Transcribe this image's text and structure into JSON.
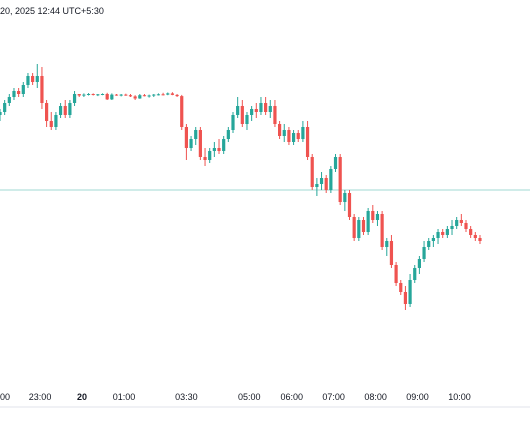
{
  "header": {
    "text": "20, 2025 12:44 UTC+5:30"
  },
  "colors": {
    "up": "#26a69a",
    "down": "#ef5350",
    "baseline": "#80cbc4",
    "axis_line": "#e0e3eb",
    "text": "#131722"
  },
  "chart_data": {
    "type": "candlestick",
    "title": "",
    "xlabel": "",
    "ylabel": "",
    "x_tick_labels": [
      {
        "label": "00",
        "bold": false
      },
      {
        "label": "23:00",
        "bold": false
      },
      {
        "label": "20",
        "bold": true
      },
      {
        "label": "01:00",
        "bold": false
      },
      {
        "label": "03:30",
        "bold": false
      },
      {
        "label": "05:00",
        "bold": false
      },
      {
        "label": "06:00",
        "bold": false
      },
      {
        "label": "07:00",
        "bold": false
      },
      {
        "label": "08:00",
        "bold": false
      },
      {
        "label": "09:00",
        "bold": false
      },
      {
        "label": "10:00",
        "bold": false
      }
    ],
    "x_tick_index": [
      0,
      8.6,
      17.6,
      26.6,
      40,
      53.5,
      62.6,
      71.6,
      80.6,
      89.6,
      98.6
    ],
    "ylim": [
      0,
      100
    ],
    "baseline_value": 50,
    "candles": [
      [
        75,
        77,
        73,
        76
      ],
      [
        76,
        80,
        75,
        79
      ],
      [
        79,
        82,
        78,
        81
      ],
      [
        81,
        84,
        80,
        83
      ],
      [
        83,
        84,
        81,
        82
      ],
      [
        82,
        86,
        81,
        85
      ],
      [
        85,
        89,
        84,
        88
      ],
      [
        88,
        89,
        85,
        86
      ],
      [
        86,
        92,
        84,
        88
      ],
      [
        88,
        91,
        77,
        79
      ],
      [
        79,
        80,
        71,
        73
      ],
      [
        73,
        76,
        70,
        71
      ],
      [
        71,
        76,
        70,
        75
      ],
      [
        75,
        79,
        74,
        78
      ],
      [
        78,
        80,
        74,
        75
      ],
      [
        75,
        80,
        74,
        79
      ],
      [
        79,
        83,
        78,
        82
      ],
      [
        82,
        82,
        81,
        81.5
      ],
      [
        81.5,
        82.2,
        81,
        81.8
      ],
      [
        81.8,
        82.3,
        81.5,
        82
      ],
      [
        82,
        82.2,
        81.5,
        81.7
      ],
      [
        81.7,
        82,
        81.3,
        81.9
      ],
      [
        81.9,
        82.2,
        81.6,
        82
      ],
      [
        82,
        82.4,
        80,
        80.2
      ],
      [
        80.2,
        82.2,
        80,
        81.8
      ],
      [
        81.8,
        82,
        81.4,
        81.6
      ],
      [
        81.6,
        82,
        81.2,
        81.8
      ],
      [
        81.8,
        82.1,
        81.4,
        81.6
      ],
      [
        81.6,
        82,
        81,
        81.2
      ],
      [
        81.2,
        81.6,
        80,
        80.5
      ],
      [
        80.5,
        82,
        80.4,
        81.6
      ],
      [
        81.6,
        82,
        81.2,
        81.4
      ],
      [
        81.4,
        81.8,
        80.8,
        81.5
      ],
      [
        81.5,
        82,
        81,
        81.8
      ],
      [
        81.8,
        82.2,
        81.5,
        81.9
      ],
      [
        81.9,
        82.4,
        81.5,
        81.8
      ],
      [
        81.8,
        82.5,
        81.6,
        82.2
      ],
      [
        82.2,
        82.6,
        81.6,
        81.7
      ],
      [
        81.7,
        82,
        81,
        81.3
      ],
      [
        81.3,
        81.7,
        70,
        71
      ],
      [
        71,
        72,
        60,
        64
      ],
      [
        64,
        68,
        63,
        67
      ],
      [
        67,
        71,
        65,
        70
      ],
      [
        70,
        71,
        60,
        61
      ],
      [
        61,
        64,
        58,
        60
      ],
      [
        60,
        64,
        59,
        63
      ],
      [
        63,
        66,
        61,
        64
      ],
      [
        64,
        67,
        62,
        63
      ],
      [
        63,
        68,
        62,
        67
      ],
      [
        67,
        71,
        66,
        70
      ],
      [
        70,
        76,
        69,
        75
      ],
      [
        75,
        81,
        74,
        78
      ],
      [
        78,
        80,
        71,
        72
      ],
      [
        72,
        76,
        70,
        75
      ],
      [
        75,
        78,
        73,
        77
      ],
      [
        77,
        79,
        74,
        76
      ],
      [
        76,
        81,
        75,
        79
      ],
      [
        79,
        81,
        75,
        76
      ],
      [
        76,
        80,
        74,
        78
      ],
      [
        78,
        80,
        71,
        72
      ],
      [
        72,
        73,
        67,
        68
      ],
      [
        68,
        72,
        66,
        70
      ],
      [
        70,
        71,
        65,
        66
      ],
      [
        66,
        70,
        65,
        69
      ],
      [
        69,
        70,
        66,
        67
      ],
      [
        67,
        73,
        66,
        71
      ],
      [
        71,
        73,
        60,
        61
      ],
      [
        61,
        62,
        50,
        51
      ],
      [
        51,
        54,
        48,
        52
      ],
      [
        52,
        56,
        50,
        54
      ],
      [
        54,
        55,
        49,
        50
      ],
      [
        50,
        58,
        49,
        57
      ],
      [
        57,
        62,
        56,
        61
      ],
      [
        61,
        62,
        45,
        46
      ],
      [
        46,
        50,
        43,
        49
      ],
      [
        49,
        50,
        40,
        41
      ],
      [
        41,
        42,
        33,
        34
      ],
      [
        34,
        41,
        33,
        40
      ],
      [
        40,
        41,
        35,
        36
      ],
      [
        36,
        44,
        35,
        43
      ],
      [
        43,
        45,
        39,
        40
      ],
      [
        40,
        43,
        38,
        42
      ],
      [
        42,
        43,
        30,
        31
      ],
      [
        31,
        34,
        28,
        33
      ],
      [
        33,
        35,
        24,
        25
      ],
      [
        25,
        26,
        18,
        19
      ],
      [
        19,
        20,
        15,
        16
      ],
      [
        16,
        18,
        10,
        12
      ],
      [
        12,
        22,
        11,
        20
      ],
      [
        20,
        25,
        19,
        24
      ],
      [
        24,
        28,
        22,
        27
      ],
      [
        27,
        33,
        26,
        31
      ],
      [
        31,
        34,
        30,
        33
      ],
      [
        33,
        35,
        31,
        34
      ],
      [
        34,
        37,
        32,
        36
      ],
      [
        36,
        37,
        34,
        35
      ],
      [
        35,
        38,
        34,
        37
      ],
      [
        37,
        40,
        35,
        38
      ],
      [
        38,
        41,
        37,
        40
      ],
      [
        40,
        42,
        38,
        39
      ],
      [
        39,
        40,
        36,
        37
      ],
      [
        37,
        38,
        34,
        35
      ],
      [
        35,
        36,
        33,
        34
      ],
      [
        34,
        35,
        32,
        33
      ]
    ]
  }
}
